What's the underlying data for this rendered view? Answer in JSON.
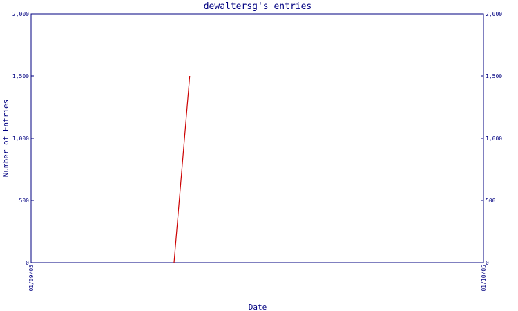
{
  "chart_data": {
    "type": "line",
    "title": "dewaltersg's entries",
    "xlabel": "Date",
    "ylabel": "Number of Entries",
    "x_tick_labels": [
      "01/09/05",
      "01/10/05"
    ],
    "y_tick_labels": [
      "0",
      "500",
      "1,000",
      "1,500",
      "2,000"
    ],
    "ylim": [
      0,
      2000
    ],
    "xlim": [
      "2005-01-09",
      "2005-01-10"
    ],
    "grid": false,
    "series": [
      {
        "color": "#cc0000",
        "points": [
          {
            "x": "2005-01-09T07:35",
            "y": 0
          },
          {
            "x": "2005-01-09T08:25",
            "y": 1500
          }
        ]
      }
    ]
  }
}
